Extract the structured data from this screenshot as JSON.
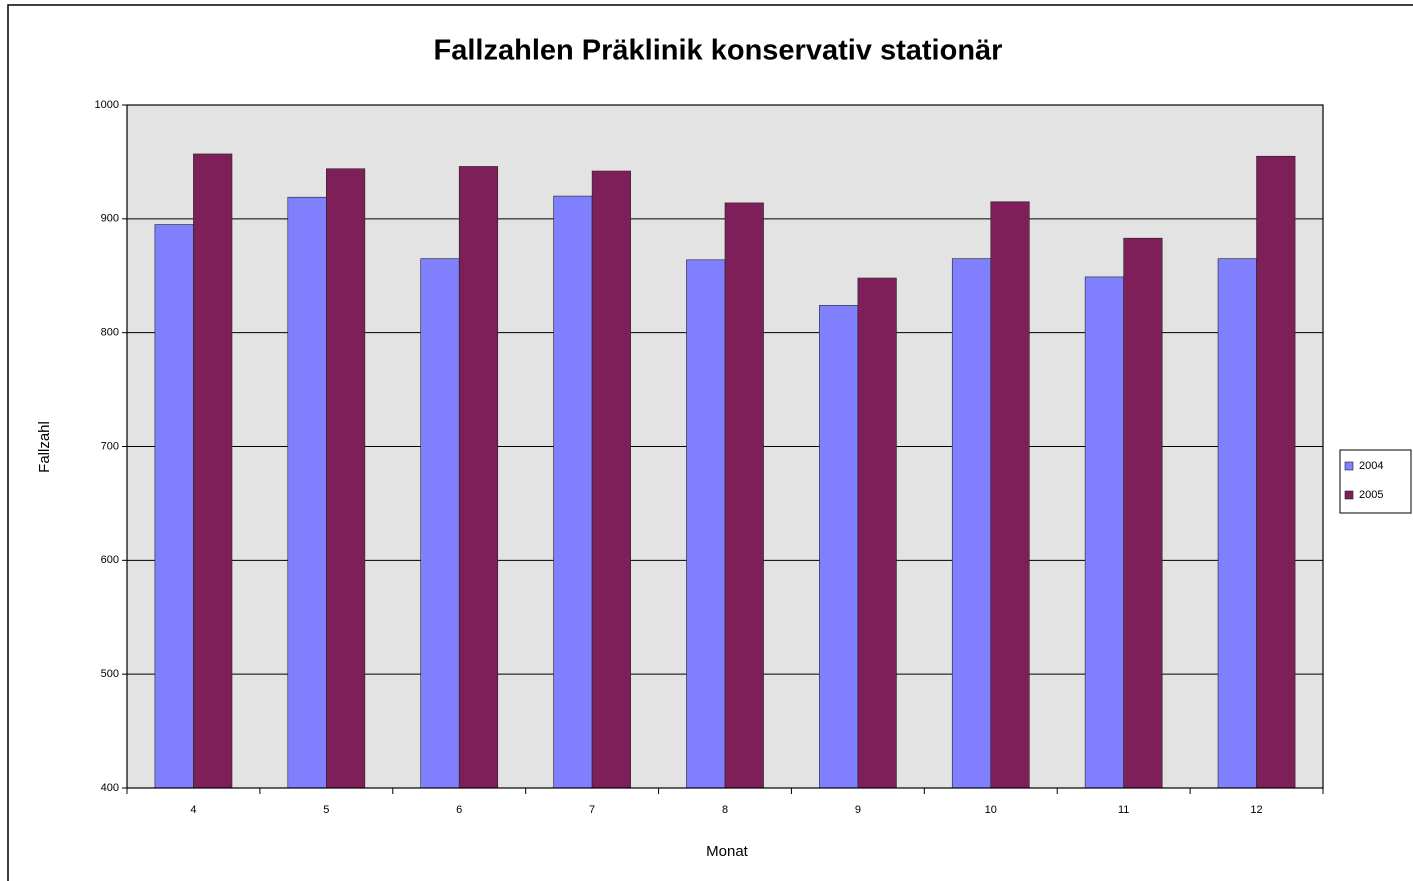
{
  "chart_data": {
    "type": "bar",
    "title": "Fallzahlen Präklinik konservativ stationär",
    "x_label": "Monat",
    "y_label": "Fallzahl",
    "categories": [
      "4",
      "5",
      "6",
      "7",
      "8",
      "9",
      "10",
      "11",
      "12"
    ],
    "series": [
      {
        "name": "2004",
        "color": "#8080ff",
        "values": [
          895,
          919,
          865,
          920,
          864,
          824,
          865,
          849,
          865
        ]
      },
      {
        "name": "2005",
        "color": "#7f1f5a",
        "values": [
          957,
          944,
          946,
          942,
          914,
          848,
          915,
          883,
          955
        ]
      }
    ],
    "ylim": [
      400,
      1000
    ],
    "yticks": [
      400,
      500,
      600,
      700,
      800,
      900,
      1000
    ],
    "grid": true,
    "legend": "right"
  }
}
